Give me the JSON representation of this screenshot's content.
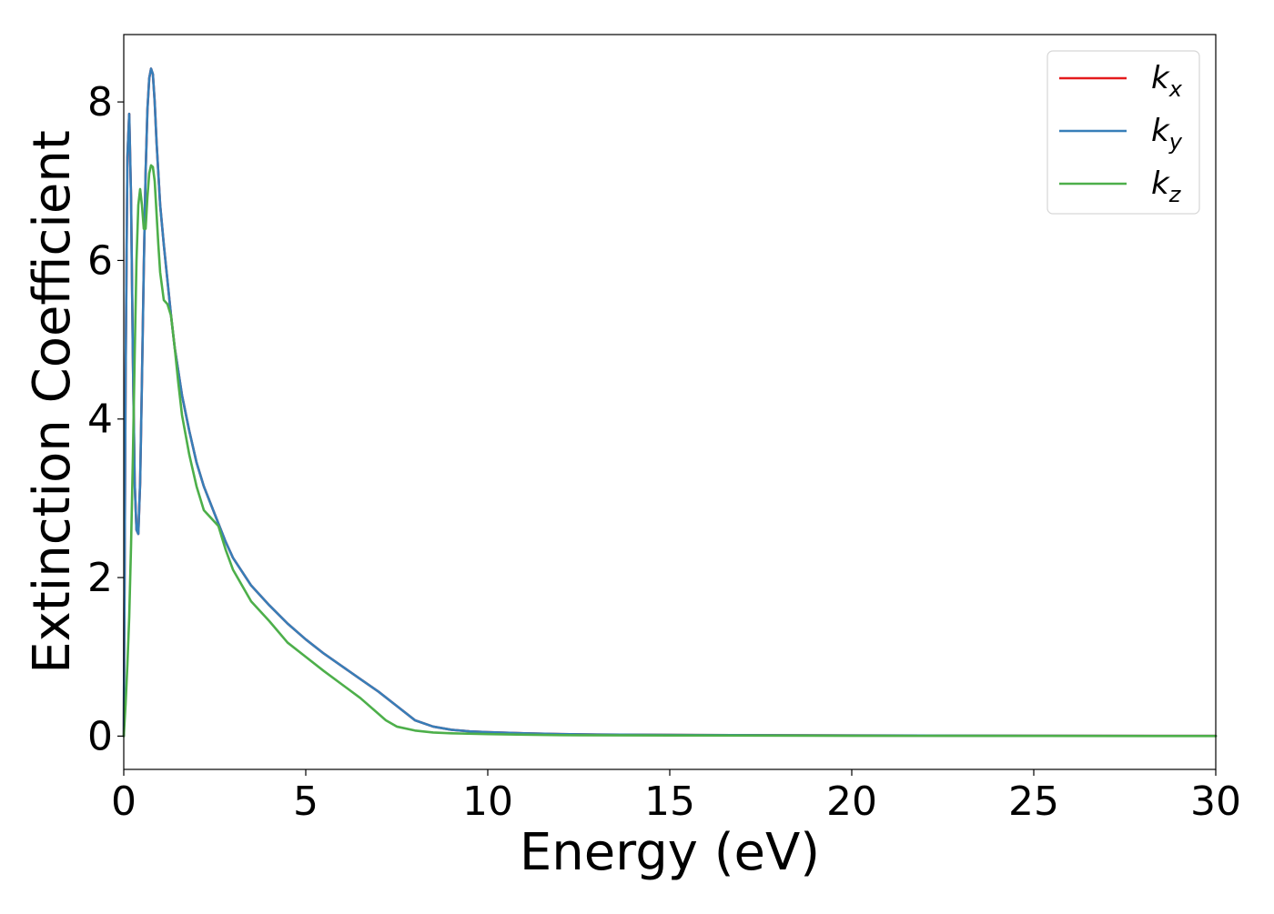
{
  "chart_data": {
    "type": "line",
    "xlabel": "Energy (eV)",
    "ylabel": "Extinction Coefficient",
    "xlim": [
      0,
      30
    ],
    "ylim": [
      -0.42,
      8.85
    ],
    "xticks": [
      0,
      5,
      10,
      15,
      20,
      25,
      30
    ],
    "yticks": [
      0,
      2,
      4,
      6,
      8
    ],
    "grid": false,
    "legend_position": "top-right",
    "series": [
      {
        "name": "k_x",
        "label_main": "k",
        "label_sub": "x",
        "color": "#e41a1c",
        "x": [
          0,
          0.05,
          0.1,
          0.15,
          0.2,
          0.25,
          0.3,
          0.35,
          0.4,
          0.45,
          0.5,
          0.55,
          0.6,
          0.65,
          0.7,
          0.75,
          0.8,
          0.85,
          0.9,
          0.95,
          1.0,
          1.1,
          1.2,
          1.3,
          1.4,
          1.5,
          1.6,
          1.8,
          2.0,
          2.2,
          2.5,
          2.8,
          3.0,
          3.5,
          4.0,
          4.5,
          5.0,
          5.5,
          6.0,
          6.5,
          7.0,
          7.5,
          8.0,
          8.5,
          9.0,
          9.5,
          10,
          11,
          12,
          13,
          15,
          20,
          25,
          30
        ],
        "y": [
          0.0,
          4.5,
          7.3,
          7.85,
          6.8,
          4.8,
          3.2,
          2.6,
          2.55,
          3.2,
          4.5,
          5.9,
          7.1,
          7.9,
          8.3,
          8.42,
          8.35,
          8.0,
          7.5,
          7.1,
          6.7,
          6.2,
          5.75,
          5.3,
          4.9,
          4.6,
          4.3,
          3.85,
          3.45,
          3.15,
          2.8,
          2.45,
          2.25,
          1.9,
          1.65,
          1.42,
          1.22,
          1.04,
          0.88,
          0.72,
          0.56,
          0.38,
          0.2,
          0.12,
          0.08,
          0.06,
          0.05,
          0.035,
          0.025,
          0.02,
          0.015,
          0.008,
          0.004,
          0.002
        ]
      },
      {
        "name": "k_y",
        "label_main": "k",
        "label_sub": "y",
        "color": "#377eb8",
        "x": [
          0,
          0.05,
          0.1,
          0.15,
          0.2,
          0.25,
          0.3,
          0.35,
          0.4,
          0.45,
          0.5,
          0.55,
          0.6,
          0.65,
          0.7,
          0.75,
          0.8,
          0.85,
          0.9,
          0.95,
          1.0,
          1.1,
          1.2,
          1.3,
          1.4,
          1.5,
          1.6,
          1.8,
          2.0,
          2.2,
          2.5,
          2.8,
          3.0,
          3.5,
          4.0,
          4.5,
          5.0,
          5.5,
          6.0,
          6.5,
          7.0,
          7.5,
          8.0,
          8.5,
          9.0,
          9.5,
          10,
          11,
          12,
          13,
          15,
          20,
          25,
          30
        ],
        "y": [
          0.0,
          4.5,
          7.3,
          7.85,
          6.8,
          4.8,
          3.2,
          2.6,
          2.55,
          3.2,
          4.5,
          5.9,
          7.1,
          7.9,
          8.3,
          8.42,
          8.35,
          8.0,
          7.5,
          7.1,
          6.7,
          6.2,
          5.75,
          5.3,
          4.9,
          4.6,
          4.3,
          3.85,
          3.45,
          3.15,
          2.8,
          2.45,
          2.25,
          1.9,
          1.65,
          1.42,
          1.22,
          1.04,
          0.88,
          0.72,
          0.56,
          0.38,
          0.2,
          0.12,
          0.08,
          0.06,
          0.05,
          0.035,
          0.025,
          0.02,
          0.015,
          0.008,
          0.004,
          0.002
        ]
      },
      {
        "name": "k_z",
        "label_main": "k",
        "label_sub": "z",
        "color": "#4daf4a",
        "x": [
          0,
          0.05,
          0.1,
          0.15,
          0.2,
          0.25,
          0.3,
          0.35,
          0.4,
          0.45,
          0.5,
          0.55,
          0.6,
          0.65,
          0.7,
          0.75,
          0.8,
          0.85,
          0.9,
          0.95,
          1.0,
          1.1,
          1.2,
          1.3,
          1.4,
          1.5,
          1.6,
          1.8,
          2.0,
          2.2,
          2.4,
          2.6,
          2.8,
          3.0,
          3.5,
          4.0,
          4.5,
          5.0,
          5.5,
          6.0,
          6.5,
          7.0,
          7.2,
          7.5,
          8.0,
          8.5,
          9.0,
          10,
          11,
          12,
          15,
          20,
          25,
          30
        ],
        "y": [
          0.0,
          0.4,
          0.9,
          1.5,
          2.4,
          3.5,
          4.8,
          6.0,
          6.7,
          6.9,
          6.7,
          6.4,
          6.4,
          6.8,
          7.1,
          7.2,
          7.18,
          7.0,
          6.6,
          6.2,
          5.85,
          5.5,
          5.45,
          5.3,
          4.9,
          4.45,
          4.05,
          3.55,
          3.15,
          2.85,
          2.75,
          2.65,
          2.35,
          2.1,
          1.7,
          1.45,
          1.18,
          1.0,
          0.82,
          0.65,
          0.48,
          0.28,
          0.2,
          0.12,
          0.07,
          0.045,
          0.035,
          0.025,
          0.018,
          0.012,
          0.008,
          0.004,
          0.002,
          0.001
        ]
      }
    ]
  }
}
